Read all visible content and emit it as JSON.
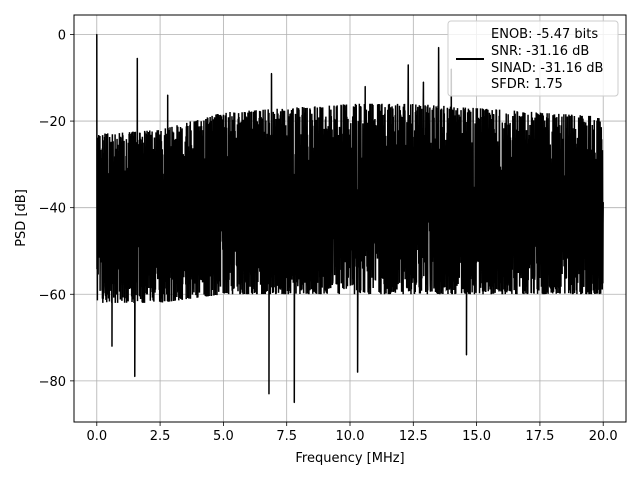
{
  "chart_data": {
    "type": "line",
    "title": "",
    "xlabel": "Frequency [MHz]",
    "ylabel": "PSD [dB]",
    "xlim": [
      -0.9,
      20.9
    ],
    "ylim": [
      -89.5,
      4.5
    ],
    "xticks": [
      0.0,
      2.5,
      5.0,
      7.5,
      10.0,
      12.5,
      15.0,
      17.5,
      20.0
    ],
    "xtick_labels": [
      "0.0",
      "2.5",
      "5.0",
      "7.5",
      "10.0",
      "12.5",
      "15.0",
      "17.5",
      "20.0"
    ],
    "yticks": [
      0,
      -20,
      -40,
      -60,
      -80
    ],
    "ytick_labels": [
      "0",
      "−20",
      "−40",
      "−60",
      "−80"
    ],
    "grid": true,
    "legend_position": "top-right",
    "line_color": "#000000",
    "legend": {
      "entries": [
        "ENOB: -5.47 bits",
        "SNR: -31.16 dB",
        "SINAD: -31.16 dB",
        "SFDR: 1.75"
      ]
    },
    "series": [
      {
        "x_range": [
          0.0,
          20.0
        ],
        "noise_floor_min": [
          [
            0,
            -62
          ],
          [
            2.5,
            -62
          ],
          [
            5,
            -60
          ],
          [
            7.5,
            -60
          ],
          [
            10,
            -60
          ],
          [
            12.5,
            -60
          ],
          [
            15,
            -60
          ],
          [
            17.5,
            -60
          ],
          [
            20,
            -60
          ]
        ],
        "noise_floor_max": [
          [
            0,
            -23
          ],
          [
            2.5,
            -22
          ],
          [
            5,
            -18
          ],
          [
            7.5,
            -17
          ],
          [
            10,
            -16
          ],
          [
            12.5,
            -16
          ],
          [
            15,
            -17
          ],
          [
            17.5,
            -18
          ],
          [
            20,
            -19
          ]
        ],
        "peaks": [
          {
            "x": 0.0,
            "y": 0.0
          },
          {
            "x": 1.6,
            "y": -5.5
          },
          {
            "x": 6.9,
            "y": -9.0
          },
          {
            "x": 12.3,
            "y": -7.0
          },
          {
            "x": 13.5,
            "y": -3.0
          },
          {
            "x": 14.0,
            "y": -8.0
          },
          {
            "x": 2.8,
            "y": -14.0
          },
          {
            "x": 10.6,
            "y": -12.0
          },
          {
            "x": 12.9,
            "y": -11.0
          }
        ],
        "dips": [
          {
            "x": 1.5,
            "y": -79.0
          },
          {
            "x": 6.8,
            "y": -83.0
          },
          {
            "x": 7.8,
            "y": -85.0
          },
          {
            "x": 10.3,
            "y": -78.0
          },
          {
            "x": 0.6,
            "y": -72.0
          },
          {
            "x": 14.6,
            "y": -74.0
          }
        ]
      }
    ]
  }
}
